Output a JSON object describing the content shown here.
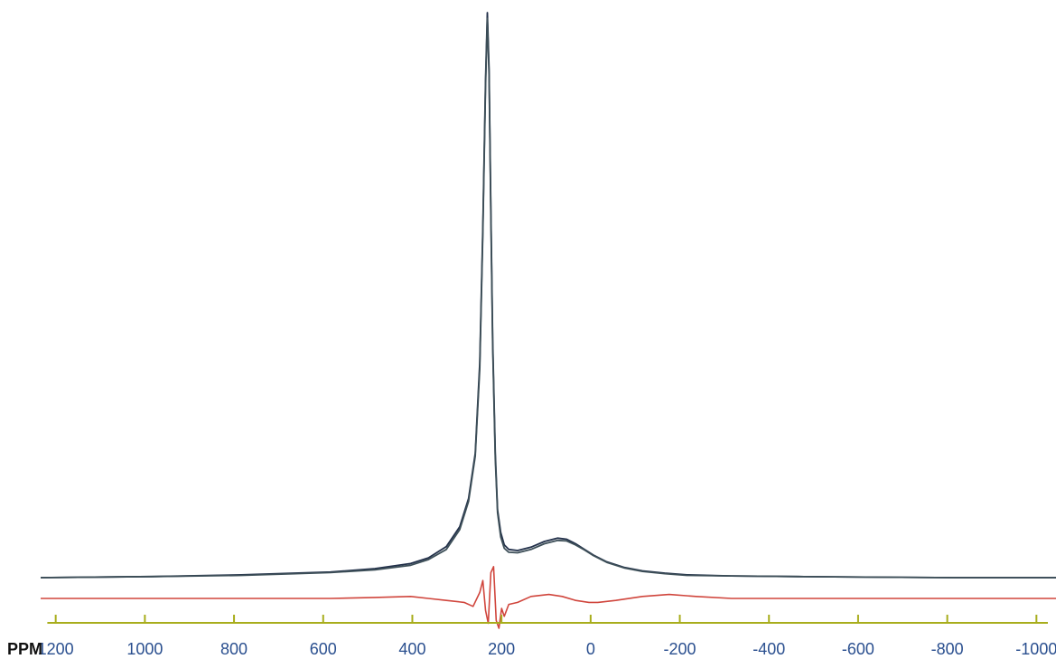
{
  "chart_data": {
    "type": "line",
    "xlabel": "PPM",
    "xlim": [
      1250,
      -1050
    ],
    "x_reversed": true,
    "ticks": [
      1200,
      1000,
      800,
      600,
      400,
      200,
      0,
      -200,
      -400,
      -600,
      -800,
      -1000
    ],
    "tick_labels": [
      "1200",
      "1000",
      "800",
      "600",
      "400",
      "200",
      "0",
      "-200",
      "-400",
      "-600",
      "-800",
      "-1000"
    ],
    "grid": false,
    "legend": "none",
    "colors": {
      "experimental": "#22304a",
      "fit": "#3d4f58",
      "residual": "#d0453c",
      "axis": "#a8ad1c",
      "tick_text": "#2a4f8f",
      "unit_text": "#111111"
    },
    "series": [
      {
        "key": "experimental",
        "x": [
          1250,
          1000,
          800,
          600,
          500,
          420,
          380,
          340,
          310,
          290,
          275,
          265,
          258,
          252,
          248,
          244,
          240,
          236,
          230,
          225,
          218,
          210,
          200,
          180,
          150,
          120,
          90,
          70,
          50,
          30,
          10,
          -20,
          -60,
          -100,
          -150,
          -200,
          -300,
          -450,
          -600,
          -800,
          -1050
        ],
        "y": [
          0.0,
          0.002,
          0.005,
          0.01,
          0.016,
          0.025,
          0.035,
          0.055,
          0.09,
          0.14,
          0.22,
          0.38,
          0.62,
          0.88,
          1.0,
          0.9,
          0.65,
          0.42,
          0.22,
          0.12,
          0.08,
          0.058,
          0.05,
          0.048,
          0.054,
          0.064,
          0.07,
          0.068,
          0.06,
          0.05,
          0.04,
          0.028,
          0.018,
          0.012,
          0.008,
          0.005,
          0.003,
          0.002,
          0.001,
          0.0,
          0.0
        ]
      },
      {
        "key": "fit",
        "x": [
          1250,
          1000,
          800,
          600,
          500,
          420,
          380,
          340,
          310,
          290,
          275,
          265,
          258,
          252,
          248,
          244,
          240,
          236,
          230,
          225,
          218,
          210,
          200,
          180,
          150,
          120,
          90,
          70,
          50,
          30,
          10,
          -20,
          -60,
          -100,
          -150,
          -200,
          -300,
          -450,
          -600,
          -800,
          -1050
        ],
        "y": [
          0.0,
          0.002,
          0.004,
          0.009,
          0.014,
          0.022,
          0.032,
          0.05,
          0.085,
          0.135,
          0.215,
          0.37,
          0.61,
          0.87,
          0.99,
          0.89,
          0.64,
          0.41,
          0.21,
          0.115,
          0.072,
          0.052,
          0.045,
          0.044,
          0.05,
          0.06,
          0.066,
          0.065,
          0.058,
          0.049,
          0.039,
          0.027,
          0.017,
          0.011,
          0.007,
          0.004,
          0.003,
          0.002,
          0.001,
          0.0,
          0.0
        ]
      },
      {
        "key": "residual",
        "x": [
          1250,
          1000,
          800,
          600,
          500,
          420,
          380,
          340,
          300,
          280,
          265,
          258,
          252,
          246,
          240,
          234,
          228,
          222,
          216,
          210,
          200,
          180,
          150,
          110,
          80,
          50,
          20,
          0,
          -40,
          -100,
          -160,
          -220,
          -300,
          -450,
          -600,
          -800,
          -1050
        ],
        "y": [
          0.0,
          0.0,
          0.0,
          0.0,
          0.001,
          0.002,
          0.0,
          -0.002,
          -0.004,
          -0.008,
          0.006,
          0.018,
          -0.012,
          -0.025,
          0.026,
          0.032,
          -0.022,
          -0.03,
          -0.01,
          -0.018,
          -0.006,
          -0.004,
          0.002,
          0.004,
          0.002,
          -0.002,
          -0.004,
          -0.004,
          -0.002,
          0.002,
          0.004,
          0.002,
          0.0,
          0.0,
          0.0,
          0.0,
          0.0
        ]
      }
    ]
  }
}
